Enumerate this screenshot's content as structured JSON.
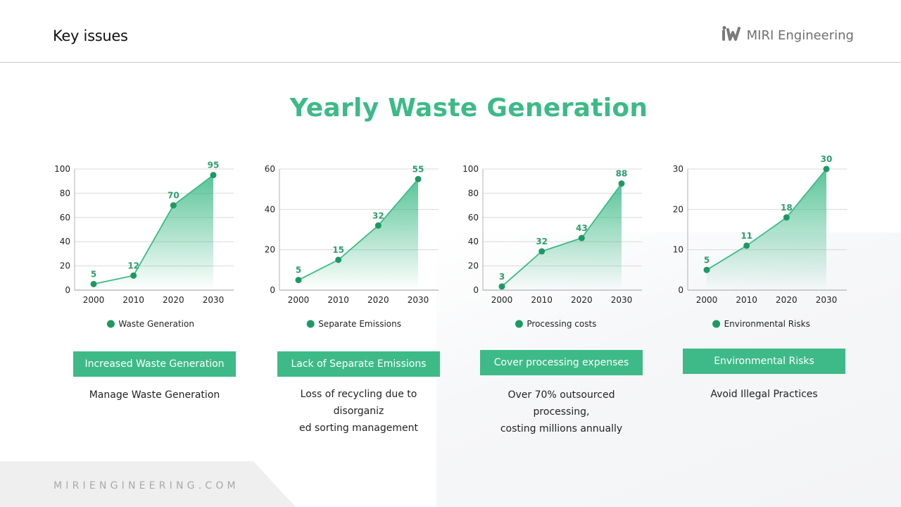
{
  "header": {
    "title": "Key issues",
    "brand_name": "MIRI Engineering",
    "logo_icon": "miri-logo-icon"
  },
  "main_title": "Yearly Waste Generation",
  "colors": {
    "accent": "#3dba87",
    "point": "#1e9963",
    "label": "#2e9e6e"
  },
  "chart_data": [
    {
      "type": "area",
      "categories": [
        "2000",
        "2010",
        "2020",
        "2030"
      ],
      "series": [
        {
          "name": "Waste Generation",
          "values": [
            5,
            12,
            70,
            95
          ]
        }
      ],
      "yticks": [
        0,
        20,
        40,
        60,
        80,
        100
      ],
      "ylim": [
        0,
        100
      ],
      "legend": "bottom",
      "grid": true
    },
    {
      "type": "area",
      "categories": [
        "2000",
        "2010",
        "2020",
        "2030"
      ],
      "series": [
        {
          "name": "Separate Emissions",
          "values": [
            5,
            15,
            32,
            55
          ]
        }
      ],
      "yticks": [
        0,
        20,
        40,
        60
      ],
      "ylim": [
        0,
        60
      ],
      "legend": "bottom",
      "grid": true
    },
    {
      "type": "area",
      "categories": [
        "2000",
        "2010",
        "2020",
        "2030"
      ],
      "series": [
        {
          "name": "Processing costs",
          "values": [
            3,
            32,
            43,
            88
          ]
        }
      ],
      "yticks": [
        0,
        20,
        40,
        60,
        80,
        100
      ],
      "ylim": [
        0,
        100
      ],
      "legend": "bottom",
      "grid": true
    },
    {
      "type": "area",
      "categories": [
        "2000",
        "2010",
        "2020",
        "2030"
      ],
      "series": [
        {
          "name": "Environmental Risks",
          "values": [
            5,
            11,
            18,
            30
          ]
        }
      ],
      "yticks": [
        0,
        10,
        20,
        30
      ],
      "ylim": [
        0,
        30
      ],
      "legend": "bottom",
      "grid": true
    }
  ],
  "cards": [
    {
      "label": "Increased Waste Generation",
      "description": "Manage Waste Generation"
    },
    {
      "label": "Lack of Separate Emissions",
      "description": "Loss of recycling due to disorganiz\ned sorting management"
    },
    {
      "label": "Cover processing expenses",
      "description": "Over 70% outsourced processing,\ncosting millions annually"
    },
    {
      "label": "Environmental Risks",
      "description": "Avoid Illegal Practices"
    }
  ],
  "footer": {
    "website": "MIRIENGINEERING.COM"
  }
}
